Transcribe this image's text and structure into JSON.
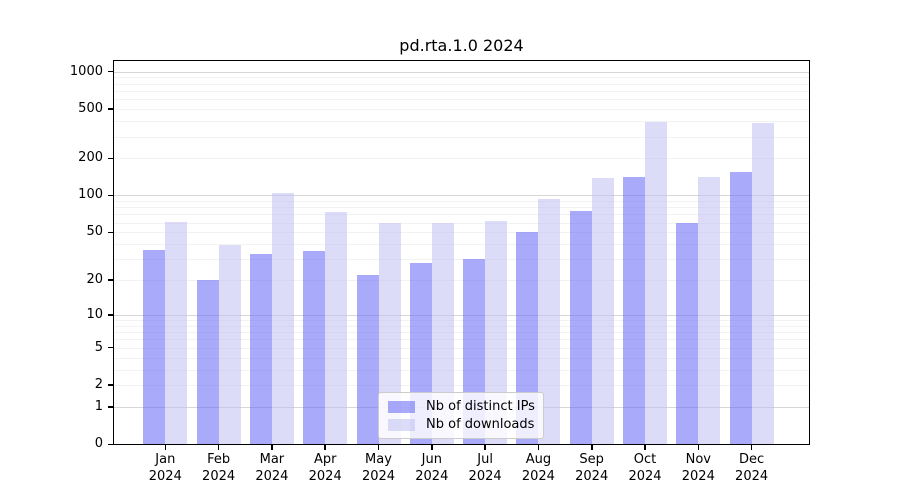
{
  "chart_data": {
    "type": "bar",
    "title": "pd.rta.1.0 2024",
    "categories": [
      "Jan",
      "Feb",
      "Mar",
      "Apr",
      "May",
      "Jun",
      "Jul",
      "Aug",
      "Sep",
      "Oct",
      "Nov",
      "Dec"
    ],
    "x_year": "2024",
    "series": [
      {
        "name": "Nb of distinct IPs",
        "color": "rgba(100,100,245,0.55)",
        "values": [
          36,
          20,
          33,
          35,
          22,
          28,
          30,
          50,
          74,
          140,
          60,
          155
        ]
      },
      {
        "name": "Nb of downloads",
        "color": "rgba(191,191,242,0.55)",
        "values": [
          61,
          39,
          105,
          73,
          60,
          60,
          62,
          94,
          138,
          390,
          140,
          385
        ]
      }
    ],
    "y_scale": "log1p",
    "y_ticks": [
      0,
      1,
      2,
      5,
      10,
      20,
      50,
      100,
      200,
      500,
      1000
    ],
    "ylim": [
      0,
      1250
    ],
    "grid": "both",
    "legend_position": "lower center",
    "colors": {
      "major_grid": "#d7d7d7",
      "minor_grid": "#f2f2f2",
      "spine": "#000000",
      "background": "#ffffff",
      "text": "#000000"
    }
  }
}
